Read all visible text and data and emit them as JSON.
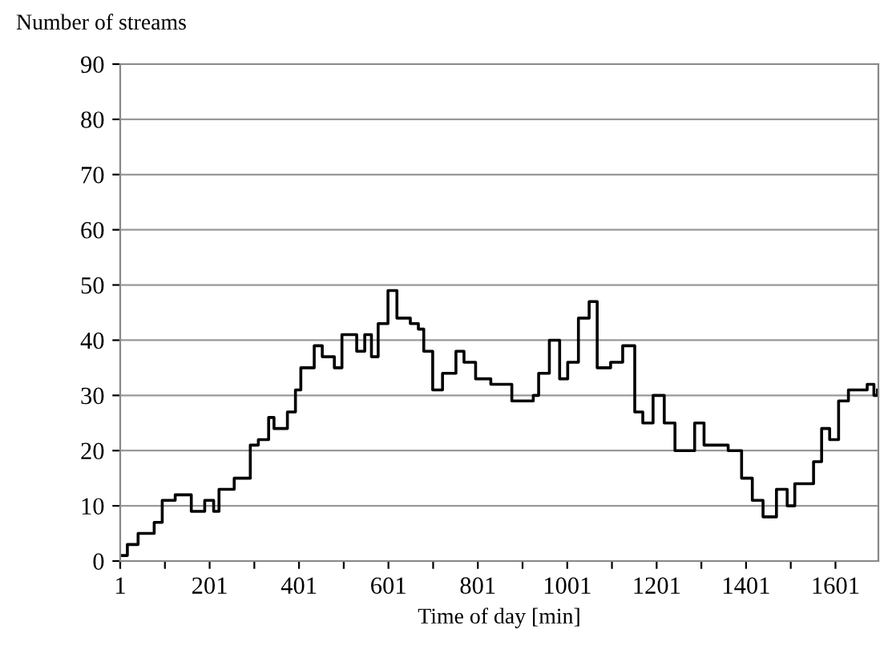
{
  "chart_data": {
    "type": "step",
    "xlabel": "Time of day [min]",
    "ylabel": "Number of streams",
    "x": [
      1,
      17,
      41,
      64,
      77,
      95,
      124,
      160,
      190,
      210,
      222,
      256,
      292,
      310,
      333,
      345,
      375,
      393,
      405,
      435,
      453,
      480,
      497,
      530,
      548,
      563,
      578,
      600,
      620,
      650,
      668,
      680,
      700,
      722,
      752,
      770,
      796,
      830,
      877,
      925,
      937,
      961,
      984,
      1002,
      1026,
      1050,
      1068,
      1098,
      1125,
      1152,
      1170,
      1193,
      1218,
      1242,
      1265,
      1286,
      1307,
      1361,
      1391,
      1415,
      1439,
      1457,
      1469,
      1493,
      1510,
      1552,
      1570,
      1588,
      1608,
      1630,
      1672,
      1687,
      1695
    ],
    "series": [
      {
        "color": "#000000",
        "values": [
          1,
          3,
          5,
          5,
          7,
          11,
          12,
          9,
          11,
          9,
          13,
          15,
          21,
          22,
          26,
          24,
          27,
          31,
          35,
          39,
          37,
          35,
          41,
          38,
          41,
          37,
          43,
          49,
          44,
          43,
          42,
          38,
          31,
          34,
          38,
          36,
          33,
          32,
          29,
          30,
          34,
          40,
          33,
          36,
          44,
          47,
          35,
          36,
          39,
          27,
          25,
          30,
          25,
          20,
          20,
          25,
          21,
          20,
          15,
          11,
          8,
          8,
          13,
          10,
          14,
          18,
          24,
          22,
          29,
          31,
          32,
          30,
          31
        ]
      }
    ],
    "xlim": [
      1,
      1697
    ],
    "ylim": [
      0,
      90
    ],
    "xticks": [
      1,
      {
        "value": 101,
        "label": null
      },
      201,
      {
        "value": 301,
        "label": null
      },
      401,
      {
        "value": 501,
        "label": null
      },
      601,
      {
        "value": 701,
        "label": null
      },
      801,
      {
        "value": 901,
        "label": null
      },
      1001,
      {
        "value": 1101,
        "label": null
      },
      1201,
      {
        "value": 1301,
        "label": null
      },
      1401,
      {
        "value": 1501,
        "label": null
      },
      1601
    ],
    "yticks": [
      0,
      10,
      20,
      30,
      40,
      50,
      60,
      70,
      80,
      90
    ],
    "grid": "y",
    "legend": false,
    "line_style": "solid"
  }
}
